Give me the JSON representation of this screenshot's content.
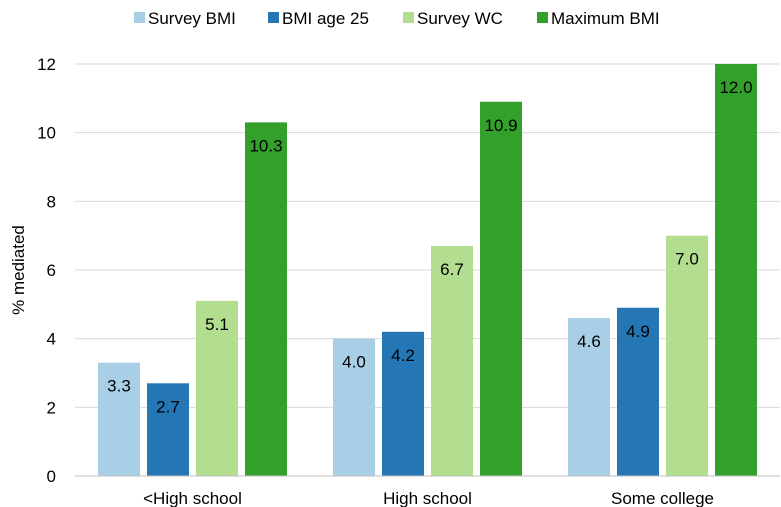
{
  "chart_data": {
    "type": "bar",
    "title": "",
    "xlabel": "",
    "ylabel": "% mediated",
    "ylim": [
      0,
      12
    ],
    "yticks": [
      0,
      2,
      4,
      6,
      8,
      10,
      12
    ],
    "grid": true,
    "legend_position": "top",
    "categories": [
      "<High school",
      "High school",
      "Some college"
    ],
    "series": [
      {
        "name": "Survey BMI",
        "color": "#a9cfe6",
        "values": [
          3.3,
          4.0,
          4.6
        ],
        "labels": [
          "3.3",
          "4.0",
          "4.6"
        ]
      },
      {
        "name": "BMI age 25",
        "color": "#2476b5",
        "values": [
          2.7,
          4.2,
          4.9
        ],
        "labels": [
          "2.7",
          "4.2",
          "4.9"
        ]
      },
      {
        "name": "Survey WC",
        "color": "#b3de8f",
        "values": [
          5.1,
          6.7,
          7.0
        ],
        "labels": [
          "5.1",
          "6.7",
          "7.0"
        ]
      },
      {
        "name": "Maximum BMI",
        "color": "#33a02c",
        "values": [
          10.3,
          10.9,
          12.0
        ],
        "labels": [
          "10.3",
          "10.9",
          "12.0"
        ]
      }
    ]
  }
}
